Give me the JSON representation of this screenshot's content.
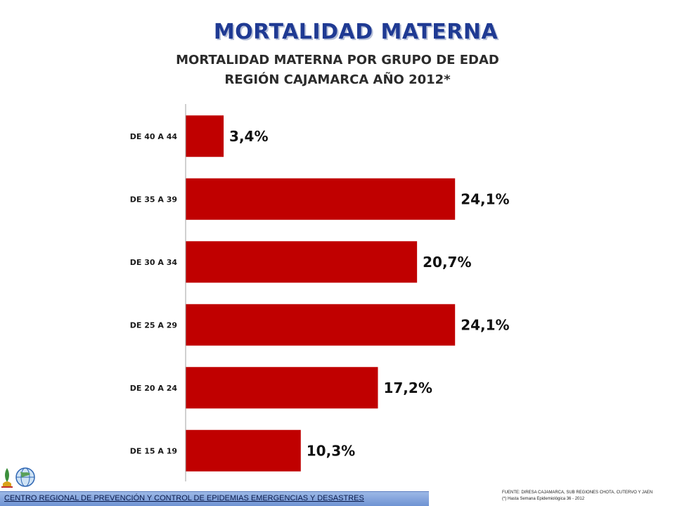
{
  "header": {
    "main_title": "MORTALIDAD MATERNA",
    "title_line1": "MORTALIDAD MATERNA POR GRUPO DE EDAD",
    "title_line2": "REGIÓN CAJAMARCA AÑO 2012*"
  },
  "chart_data": {
    "type": "bar",
    "orientation": "horizontal",
    "title": "MORTALIDAD MATERNA POR GRUPO DE EDAD REGIÓN CAJAMARCA AÑO 2012*",
    "categories": [
      "DE 40 A 44",
      "DE 35 A 39",
      "DE 30 A 34",
      "DE 25 A 29",
      "DE 20 A 24",
      "DE 15 A 19"
    ],
    "values": [
      3.4,
      24.1,
      20.7,
      24.1,
      17.2,
      10.3
    ],
    "value_labels": [
      "3,4%",
      "24,1%",
      "20,7%",
      "24,1%",
      "17,2%",
      "10,3%"
    ],
    "xlim": [
      0,
      30
    ],
    "grid": false,
    "legend": "none",
    "bar_color": "#c00000"
  },
  "footer": {
    "org_text": "CENTRO REGIONAL DE PREVENCIÓN Y CONTROL DE EPIDEMIAS EMERGENCIAS Y DESASTRES",
    "source_line1": "FUENTE: DIRESA CAJAMARCA, SUB REGIONES CHOTA, CUTERVO Y JAEN",
    "source_line2": "(*) Hasta Semana Epidemiológica 36 - 2012"
  }
}
